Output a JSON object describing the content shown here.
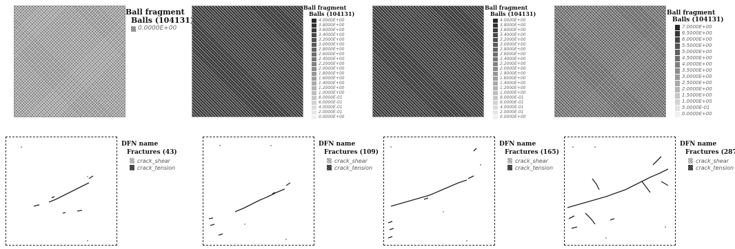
{
  "panels_top": [
    {
      "legend_title": "Ball fragment",
      "legend_sub": "Balls (104131)",
      "values": [
        "0.0000E+00"
      ]
    },
    {
      "legend_title": "Ball fragment",
      "legend_sub": "Balls (104131)",
      "values": [
        "4.0000E+00",
        "3.8000E+00",
        "3.6000E+00",
        "3.4000E+00",
        "3.2000E+00",
        "3.0000E+00",
        "2.8000E+00",
        "2.6000E+00",
        "2.4000E+00",
        "2.2000E+00",
        "2.0000E+00",
        "1.8000E+00",
        "1.6000E+00",
        "1.4000E+00",
        "1.2000E+00",
        "1.0000E+00",
        "8.0000E-01",
        "6.0000E-01",
        "4.0000E-01",
        "2.0000E-01",
        "0.0000E+00"
      ]
    },
    {
      "legend_title": "Ball fragment",
      "legend_sub": "Balls (104131)",
      "values": [
        "4.0000E+00",
        "3.8000E+00",
        "3.6000E+00",
        "3.4000E+00",
        "3.2000E+00",
        "3.0000E+00",
        "2.8000E+00",
        "2.6000E+00",
        "2.4000E+00",
        "2.2000E+00",
        "2.0000E+00",
        "1.8000E+00",
        "1.6000E+00",
        "1.4000E+00",
        "1.2000E+00",
        "1.0000E+00",
        "8.0000E-01",
        "6.0000E-01",
        "4.0000E-01",
        "2.0000E-01",
        "0.0000E+00"
      ]
    },
    {
      "legend_title": "Ball fragment",
      "legend_sub": "Balls (104131)",
      "values": [
        "7.0000E+00",
        "6.5000E+00",
        "6.0000E+00",
        "5.5000E+00",
        "5.0000E+00",
        "4.5000E+00",
        "4.0000E+00",
        "3.5000E+00",
        "3.0000E+00",
        "2.5000E+00",
        "2.0000E+00",
        "1.5000E+00",
        "1.0000E+00",
        "5.0000E-01",
        "0.0000E+00"
      ]
    }
  ],
  "panels_bottom": [
    {
      "legend_title": "DFN name",
      "legend_sub": "Fractures (43)",
      "shear_label": "crack_shear",
      "tension_label": "crack_tension"
    },
    {
      "legend_title": "DFN name",
      "legend_sub": "Fractures (109)",
      "shear_label": "crack_shear",
      "tension_label": "crack_tension"
    },
    {
      "legend_title": "DFN name",
      "legend_sub": "Fractures (165)",
      "shear_label": "crack_shear",
      "tension_label": "crack_tension"
    },
    {
      "legend_title": "DFN name",
      "legend_sub": "Fractures (287)",
      "shear_label": "crack_shear",
      "tension_label": "crack_tension"
    }
  ]
}
